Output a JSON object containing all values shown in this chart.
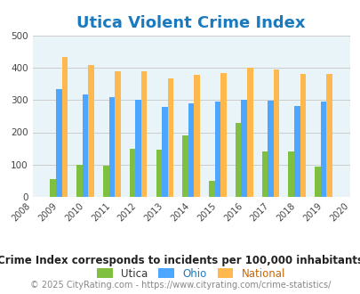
{
  "title": "Utica Violent Crime Index",
  "title_color": "#1a7abf",
  "subtitle": "Crime Index corresponds to incidents per 100,000 inhabitants",
  "footer": "© 2025 CityRating.com - https://www.cityrating.com/crime-statistics/",
  "years": [
    2009,
    2010,
    2011,
    2012,
    2013,
    2014,
    2015,
    2016,
    2017,
    2018,
    2019
  ],
  "utica": [
    55,
    100,
    97,
    148,
    147,
    190,
    50,
    228,
    140,
    140,
    93
  ],
  "ohio": [
    333,
    317,
    310,
    300,
    278,
    290,
    295,
    300,
    298,
    280,
    295
  ],
  "national": [
    432,
    407,
    388,
    388,
    368,
    378,
    383,
    399,
    395,
    381,
    381
  ],
  "utica_color": "#80c040",
  "ohio_color": "#4da6ff",
  "national_color": "#ffb84d",
  "bg_color": "#e8f4f8",
  "ylim": [
    0,
    500
  ],
  "yticks": [
    0,
    100,
    200,
    300,
    400,
    500
  ],
  "xmin": 2008,
  "xmax": 2020,
  "bar_width": 0.22,
  "legend_labels": [
    "Utica",
    "Ohio",
    "National"
  ],
  "legend_label_colors": [
    "#333333",
    "#1a7abf",
    "#cc6600"
  ],
  "subtitle_fontsize": 8.5,
  "footer_fontsize": 7,
  "title_fontsize": 13,
  "tick_fontsize": 7
}
